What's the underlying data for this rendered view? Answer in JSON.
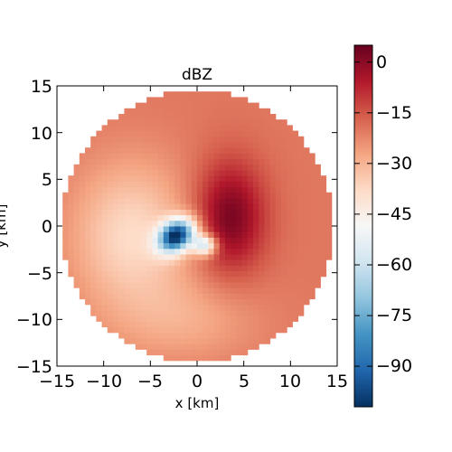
{
  "chart_data": {
    "type": "heatmap",
    "title": "dBZ",
    "xlabel": "x [km]",
    "ylabel": "y [km]",
    "xlim": [
      -15,
      15
    ],
    "ylim": [
      -15,
      15
    ],
    "x_ticks": [
      "−15",
      "−10",
      "−5",
      "0",
      "5",
      "10",
      "15"
    ],
    "y_ticks": [
      "15",
      "10",
      "5",
      "0",
      "−5",
      "−10",
      "−15"
    ],
    "grid": false,
    "domain_radius_km": 14.5,
    "colorbar": {
      "colormap": "RdBu_r",
      "range": [
        -102,
        5
      ],
      "ticks": [
        "0",
        "−15",
        "−30",
        "−45",
        "−60",
        "−75",
        "−90"
      ]
    },
    "features": [
      {
        "kind": "background",
        "value": -20
      },
      {
        "kind": "core-max",
        "x": 3.5,
        "y": 1.0,
        "value": 3
      },
      {
        "kind": "core-min",
        "x": -2.2,
        "y": -1.0,
        "value": -98
      }
    ]
  }
}
